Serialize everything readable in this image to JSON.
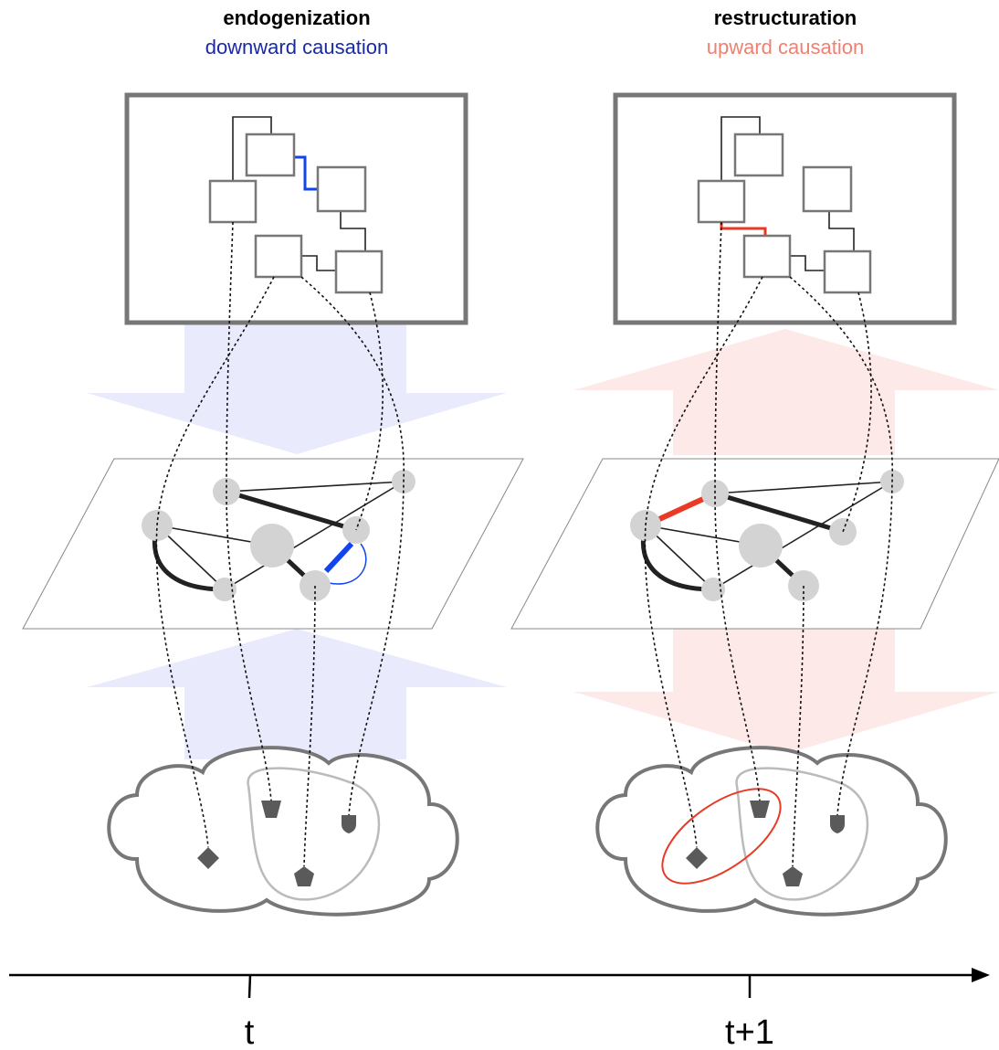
{
  "panels": [
    {
      "title": "endogenization",
      "subtitle": "downward causation",
      "time": "t"
    },
    {
      "title": "restructuration",
      "subtitle": "upward causation",
      "time": "t+1"
    }
  ]
}
